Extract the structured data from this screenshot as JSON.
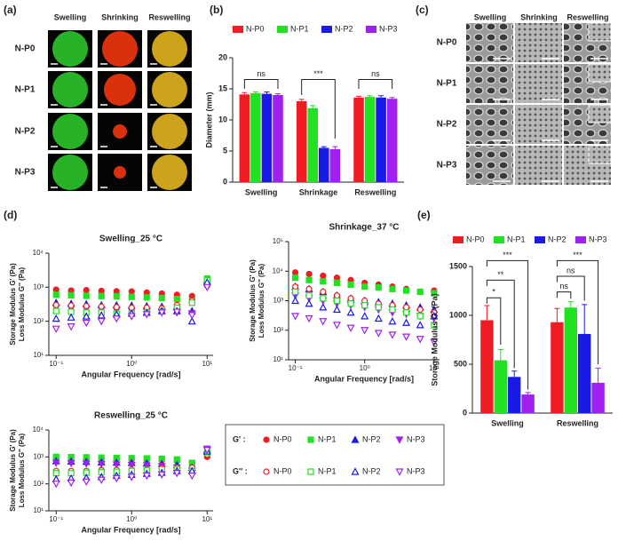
{
  "panel_labels": {
    "a": "(a)",
    "b": "(b)",
    "c": "(c)",
    "d": "(d)",
    "e": "(e)"
  },
  "image_panel_a": {
    "columns": [
      "Swelling",
      "Shrinking",
      "Reswelling"
    ],
    "rows": [
      "N-P0",
      "N-P1",
      "N-P2",
      "N-P3"
    ]
  },
  "image_panel_c": {
    "columns": [
      "Swelling",
      "Shrinking",
      "Reswelling"
    ],
    "rows": [
      "N-P0",
      "N-P1",
      "N-P2",
      "N-P3"
    ]
  },
  "rheology_legend": {
    "groups": [
      "G' :",
      "G'' :"
    ]
  },
  "chart_data": [
    {
      "type": "bar",
      "ylabel": "Diameter (mm)",
      "categories": [
        "Swelling",
        "Shrinkage",
        "Reswelling"
      ],
      "ylim": [
        0,
        20
      ],
      "yticks": [
        0,
        5,
        10,
        15,
        20
      ],
      "series": [
        {
          "name": "N-P0",
          "color": "#f01c24",
          "values": [
            14.1,
            13.0,
            13.6
          ],
          "errors": [
            0.3,
            0.3,
            0.2
          ]
        },
        {
          "name": "N-P1",
          "color": "#22e022",
          "values": [
            14.3,
            11.9,
            13.7
          ],
          "errors": [
            0.2,
            0.4,
            0.2
          ]
        },
        {
          "name": "N-P2",
          "color": "#1a1ae6",
          "values": [
            14.2,
            5.5,
            13.6
          ],
          "errors": [
            0.3,
            0.2,
            0.3
          ]
        },
        {
          "name": "N-P3",
          "color": "#a020f0",
          "values": [
            14.0,
            5.3,
            13.4
          ],
          "errors": [
            0.2,
            0.4,
            0.2
          ]
        }
      ],
      "annotations": [
        "ns",
        "***",
        "ns"
      ]
    },
    {
      "type": "scatter",
      "title": "Swelling_25 °C",
      "xlabel": "Angular Frequency [rad/s]",
      "ylabel": [
        "Storage Modulus G' (Pa)",
        "Loss Modulus G'' (Pa)"
      ],
      "log_x": true,
      "log_y": true,
      "xlim": [
        0.08,
        12
      ],
      "ylim": [
        10,
        10000
      ],
      "xticks": [
        {
          "value": 0.1,
          "label": "10⁻¹"
        },
        {
          "value": 1,
          "label": "10⁰"
        },
        {
          "value": 10,
          "label": "10¹"
        }
      ],
      "yticks": [
        {
          "value": 10,
          "label": "10¹"
        },
        {
          "value": 100,
          "label": "10²"
        },
        {
          "value": 1000,
          "label": "10³"
        },
        {
          "value": 10000,
          "label": "10⁴"
        }
      ],
      "x": [
        0.1,
        0.158,
        0.251,
        0.398,
        0.631,
        1,
        1.585,
        2.512,
        3.981,
        6.31,
        10
      ],
      "series": [
        {
          "name": "N-P0",
          "color": "#f01c24",
          "marker": "circle",
          "filled": true,
          "values": [
            850,
            800,
            820,
            780,
            760,
            750,
            700,
            650,
            600,
            550,
            1300
          ]
        },
        {
          "name": "N-P1",
          "color": "#22e022",
          "marker": "square",
          "filled": true,
          "values": [
            600,
            580,
            560,
            550,
            540,
            520,
            500,
            480,
            450,
            400,
            1800
          ]
        },
        {
          "name": "N-P2",
          "color": "#1a1ae6",
          "marker": "triangle-up",
          "filled": true,
          "values": [
            350,
            330,
            320,
            300,
            300,
            290,
            280,
            270,
            260,
            200,
            1500
          ]
        },
        {
          "name": "N-P3",
          "color": "#a020f0",
          "marker": "triangle-down",
          "filled": true,
          "values": [
            250,
            240,
            230,
            220,
            210,
            200,
            200,
            190,
            180,
            170,
            1200
          ]
        },
        {
          "name": "N-P0",
          "color": "#f01c24",
          "marker": "circle",
          "filled": false,
          "values": [
            300,
            290,
            280,
            270,
            260,
            250,
            250,
            240,
            300,
            400,
            1100
          ]
        },
        {
          "name": "N-P1",
          "color": "#22e022",
          "marker": "square",
          "filled": false,
          "values": [
            200,
            190,
            180,
            180,
            170,
            170,
            180,
            200,
            250,
            350,
            1600
          ]
        },
        {
          "name": "N-P2",
          "color": "#1a1ae6",
          "marker": "triangle-up",
          "filled": false,
          "values": [
            120,
            130,
            140,
            150,
            160,
            170,
            180,
            200,
            200,
            100,
            1400
          ]
        },
        {
          "name": "N-P3",
          "color": "#a020f0",
          "marker": "triangle-down",
          "filled": false,
          "values": [
            60,
            70,
            90,
            100,
            120,
            140,
            160,
            180,
            190,
            150,
            1000
          ]
        }
      ]
    },
    {
      "type": "scatter",
      "title": "Shrinkage_37 °C",
      "xlabel": "Angular Frequency [rad/s]",
      "ylabel": [
        "Storage Modulus G' (Pa)",
        "Loss Modulus G'' (Pa)"
      ],
      "log_x": true,
      "log_y": true,
      "xlim": [
        0.08,
        12
      ],
      "ylim": [
        10,
        100000
      ],
      "xticks": [
        {
          "value": 0.1,
          "label": "10⁻¹"
        },
        {
          "value": 1,
          "label": "10⁰"
        },
        {
          "value": 10,
          "label": "10¹"
        }
      ],
      "yticks": [
        {
          "value": 10,
          "label": "10¹"
        },
        {
          "value": 100,
          "label": "10²"
        },
        {
          "value": 1000,
          "label": "10³"
        },
        {
          "value": 10000,
          "label": "10⁴"
        },
        {
          "value": 100000,
          "label": "10⁵"
        }
      ],
      "x": [
        0.1,
        0.158,
        0.251,
        0.398,
        0.631,
        1,
        1.585,
        2.512,
        3.981,
        6.31,
        10
      ],
      "series": [
        {
          "name": "N-P0",
          "color": "#f01c24",
          "marker": "circle",
          "filled": true,
          "values": [
            9000,
            8000,
            7000,
            6000,
            5000,
            4000,
            3500,
            3000,
            2500,
            2000,
            2200
          ]
        },
        {
          "name": "N-P1",
          "color": "#22e022",
          "marker": "square",
          "filled": true,
          "values": [
            6000,
            5000,
            4500,
            4000,
            3500,
            3000,
            2800,
            2500,
            2200,
            2000,
            1800
          ]
        },
        {
          "name": "N-P2",
          "color": "#1a1ae6",
          "marker": "triangle-up",
          "filled": true,
          "values": [
            3000,
            2500,
            2000,
            1500,
            1200,
            1000,
            900,
            800,
            700,
            600,
            500
          ]
        },
        {
          "name": "N-P3",
          "color": "#a020f0",
          "marker": "triangle-down",
          "filled": true,
          "values": [
            1500,
            1200,
            1000,
            800,
            700,
            600,
            500,
            400,
            350,
            300,
            250
          ]
        },
        {
          "name": "N-P0",
          "color": "#f01c24",
          "marker": "circle",
          "filled": false,
          "values": [
            3000,
            2500,
            2000,
            1500,
            1200,
            1000,
            800,
            700,
            600,
            500,
            400
          ]
        },
        {
          "name": "N-P1",
          "color": "#22e022",
          "marker": "square",
          "filled": false,
          "values": [
            2000,
            1500,
            1200,
            1000,
            800,
            700,
            600,
            500,
            400,
            300,
            150
          ]
        },
        {
          "name": "N-P2",
          "color": "#1a1ae6",
          "marker": "triangle-up",
          "filled": false,
          "values": [
            1000,
            800,
            600,
            500,
            400,
            300,
            250,
            200,
            180,
            150,
            300
          ]
        },
        {
          "name": "N-P3",
          "color": "#a020f0",
          "marker": "triangle-down",
          "filled": false,
          "values": [
            300,
            250,
            200,
            150,
            120,
            100,
            80,
            70,
            60,
            50,
            40
          ]
        }
      ]
    },
    {
      "type": "scatter",
      "title": "Reswelling_25 °C",
      "xlabel": "Angular Frequency [rad/s]",
      "ylabel": [
        "Storage Modulus G' (Pa)",
        "Loss Modulus G'' (Pa)"
      ],
      "log_x": true,
      "log_y": true,
      "xlim": [
        0.08,
        12
      ],
      "ylim": [
        10,
        10000
      ],
      "xticks": [
        {
          "value": 0.1,
          "label": "10⁻¹"
        },
        {
          "value": 1,
          "label": "10⁰"
        },
        {
          "value": 10,
          "label": "10¹"
        }
      ],
      "yticks": [
        {
          "value": 10,
          "label": "10¹"
        },
        {
          "value": 100,
          "label": "10²"
        },
        {
          "value": 1000,
          "label": "10³"
        },
        {
          "value": 10000,
          "label": "10⁴"
        }
      ],
      "x": [
        0.1,
        0.158,
        0.251,
        0.398,
        0.631,
        1,
        1.585,
        2.512,
        3.981,
        6.31,
        10
      ],
      "series": [
        {
          "name": "N-P0",
          "color": "#f01c24",
          "marker": "circle",
          "filled": true,
          "values": [
            900,
            880,
            860,
            840,
            820,
            800,
            780,
            750,
            700,
            600,
            1000
          ]
        },
        {
          "name": "N-P1",
          "color": "#22e022",
          "marker": "square",
          "filled": true,
          "values": [
            1000,
            980,
            960,
            940,
            920,
            900,
            880,
            850,
            800,
            600,
            1500
          ]
        },
        {
          "name": "N-P2",
          "color": "#1a1ae6",
          "marker": "triangle-up",
          "filled": true,
          "values": [
            700,
            680,
            660,
            640,
            620,
            600,
            580,
            550,
            500,
            400,
            1800
          ]
        },
        {
          "name": "N-P3",
          "color": "#a020f0",
          "marker": "triangle-down",
          "filled": true,
          "values": [
            600,
            580,
            560,
            540,
            520,
            500,
            480,
            450,
            400,
            300,
            2000
          ]
        },
        {
          "name": "N-P0",
          "color": "#f01c24",
          "marker": "circle",
          "filled": false,
          "values": [
            300,
            300,
            300,
            320,
            330,
            340,
            350,
            380,
            400,
            400,
            1200
          ]
        },
        {
          "name": "N-P1",
          "color": "#22e022",
          "marker": "square",
          "filled": false,
          "values": [
            250,
            250,
            260,
            270,
            280,
            300,
            320,
            340,
            350,
            300,
            1400
          ]
        },
        {
          "name": "N-P2",
          "color": "#1a1ae6",
          "marker": "triangle-up",
          "filled": false,
          "values": [
            150,
            160,
            170,
            180,
            200,
            220,
            240,
            260,
            300,
            300,
            1600
          ]
        },
        {
          "name": "N-P3",
          "color": "#a020f0",
          "marker": "triangle-down",
          "filled": false,
          "values": [
            100,
            110,
            120,
            140,
            160,
            180,
            200,
            220,
            250,
            200,
            1800
          ]
        }
      ]
    },
    {
      "type": "bar",
      "ylabel": "Storage Modulus G' (Pa)",
      "categories": [
        "Swelling",
        "Reswelling"
      ],
      "ylim": [
        0,
        1500
      ],
      "yticks": [
        0,
        500,
        1000,
        1500
      ],
      "series": [
        {
          "name": "N-P0",
          "color": "#f01c24",
          "values": [
            950,
            930
          ],
          "errors": [
            150,
            140
          ]
        },
        {
          "name": "N-P1",
          "color": "#22e022",
          "values": [
            540,
            1080
          ],
          "errors": [
            110,
            60
          ]
        },
        {
          "name": "N-P2",
          "color": "#1a1ae6",
          "values": [
            370,
            810
          ],
          "errors": [
            60,
            300
          ]
        },
        {
          "name": "N-P3",
          "color": "#a020f0",
          "values": [
            190,
            310
          ],
          "errors": [
            20,
            150
          ]
        }
      ],
      "annotations": [
        "*",
        "**",
        "***",
        "ns",
        "ns",
        "***"
      ]
    }
  ]
}
